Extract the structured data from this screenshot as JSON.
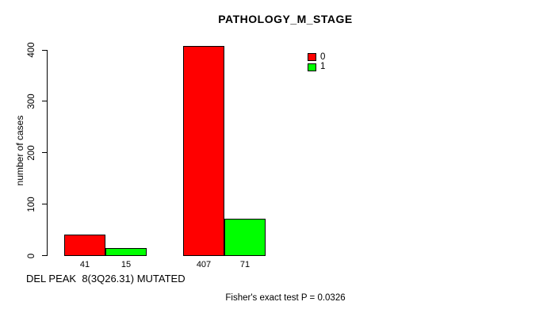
{
  "title": "PATHOLOGY_M_STAGE",
  "chart_data": {
    "type": "bar",
    "title": "PATHOLOGY_M_STAGE",
    "ylabel": "number of cases",
    "xlabel": "DEL PEAK  8(3Q26.31) MUTATED",
    "ylim": [
      0,
      400
    ],
    "yticks": [
      0,
      100,
      200,
      300,
      400
    ],
    "grid": false,
    "categories": [
      "",
      ""
    ],
    "series": [
      {
        "name": "0",
        "color": "#ff0000",
        "values": [
          41,
          407
        ]
      },
      {
        "name": "1",
        "color": "#00ff00",
        "values": [
          15,
          71
        ]
      }
    ],
    "legend": {
      "position": "top-right",
      "entries": [
        {
          "label": "0",
          "color": "#ff0000"
        },
        {
          "label": "1",
          "color": "#00ff00"
        }
      ]
    },
    "annotation": "Fisher's exact test P = 0.0326"
  },
  "colors": {
    "background": "#ffffff",
    "axis": "#000000",
    "bar_red": "#ff0000",
    "bar_green": "#00ff00"
  }
}
